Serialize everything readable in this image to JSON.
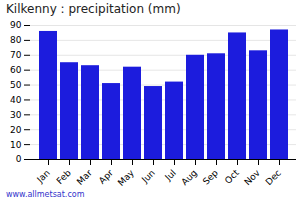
{
  "chart_data": {
    "type": "bar",
    "title": "Kilkenny : precipitation (mm)",
    "categories": [
      "Jan",
      "Feb",
      "Mar",
      "Apr",
      "May",
      "Jun",
      "Jul",
      "Aug",
      "Sep",
      "Oct",
      "Nov",
      "Dec"
    ],
    "values": [
      86,
      65,
      63,
      51,
      62,
      49,
      52,
      70,
      71,
      85,
      73,
      87
    ],
    "color": "#1c1cdd",
    "ylim": [
      0,
      90
    ],
    "yticks": [
      0,
      10,
      20,
      30,
      40,
      50,
      60,
      70,
      80,
      90
    ],
    "grid": true,
    "annotations": [
      "www.allmetsat.com"
    ]
  }
}
